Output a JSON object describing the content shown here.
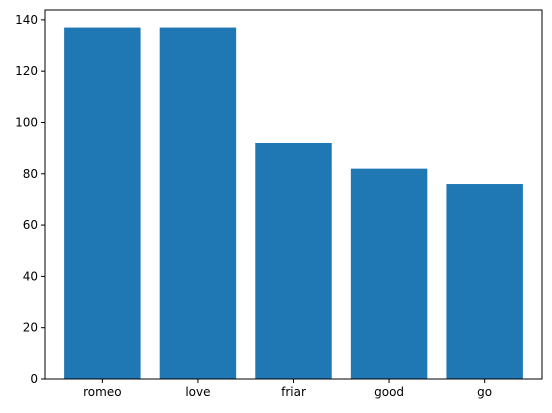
{
  "chart_data": {
    "type": "bar",
    "title": "",
    "xlabel": "",
    "ylabel": "",
    "categories": [
      "romeo",
      "love",
      "friar",
      "good",
      "go"
    ],
    "values": [
      137,
      137,
      92,
      82,
      76
    ],
    "ylim": [
      0,
      143.85
    ],
    "yticks": [
      0,
      20,
      40,
      60,
      80,
      100,
      120,
      140
    ],
    "ytick_labels": [
      "0",
      "20",
      "40",
      "60",
      "80",
      "100",
      "120",
      "140"
    ],
    "grid": false,
    "legend": "none",
    "bar_color": "#1f77b4"
  }
}
